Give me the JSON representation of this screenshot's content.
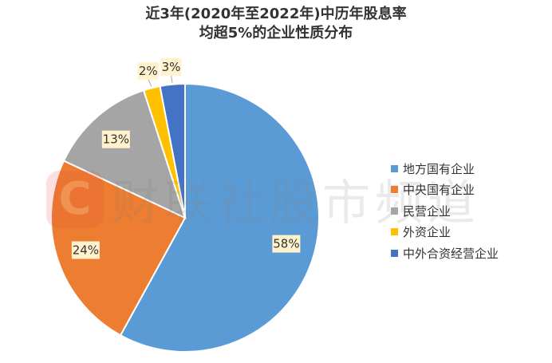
{
  "chart_data": {
    "type": "pie",
    "title_lines": [
      "近3年(2020年至2022年)中历年股息率",
      "均超5%的企业性质分布"
    ],
    "categories": [
      "地方国有企业",
      "中央国有企业",
      "民营企业",
      "外资企业",
      "中外合资经营企业"
    ],
    "values": [
      58,
      24,
      13,
      2,
      3
    ],
    "data_labels": [
      "58%",
      "24%",
      "13%",
      "2%",
      "3%"
    ],
    "colors": [
      "#5b9bd5",
      "#ed7d31",
      "#a5a5a5",
      "#ffc000",
      "#4472c4"
    ],
    "legend_position": "right",
    "start_angle": "12 o'clock",
    "direction": "clockwise"
  },
  "watermark": {
    "logo_letter": "C",
    "text": "财联社股市频道",
    "color": "#e8473f"
  }
}
